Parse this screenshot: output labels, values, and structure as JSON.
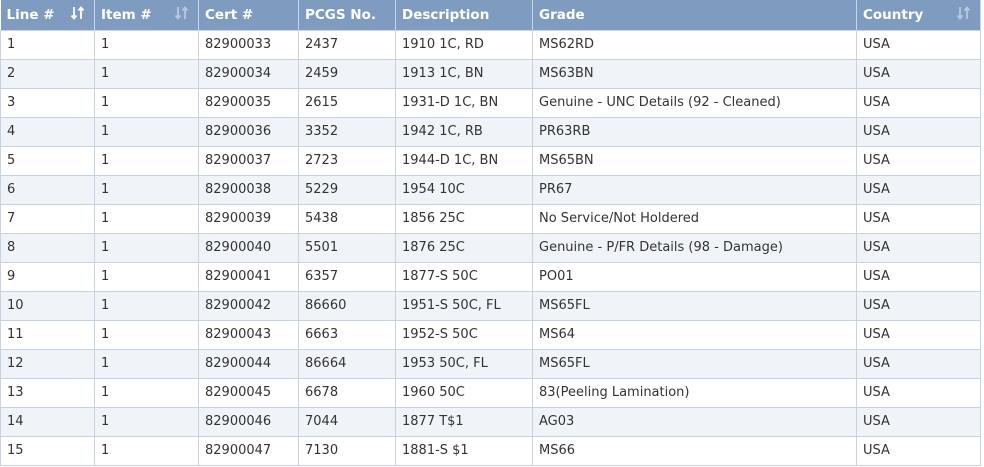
{
  "table": {
    "columns": [
      {
        "label": "Line #",
        "sort_icon": "sort-active-icon"
      },
      {
        "label": "Item #",
        "sort_icon": "sort-icon"
      },
      {
        "label": "Cert #"
      },
      {
        "label": "PCGS No."
      },
      {
        "label": "Description"
      },
      {
        "label": "Grade"
      },
      {
        "label": "Country",
        "sort_icon": "sort-icon"
      }
    ],
    "rows": [
      [
        "1",
        "1",
        "82900033",
        "2437",
        "1910 1C, RD",
        "MS62RD",
        "USA"
      ],
      [
        "2",
        "1",
        "82900034",
        "2459",
        "1913 1C, BN",
        "MS63BN",
        "USA"
      ],
      [
        "3",
        "1",
        "82900035",
        "2615",
        "1931-D 1C, BN",
        "Genuine - UNC Details (92 - Cleaned)",
        "USA"
      ],
      [
        "4",
        "1",
        "82900036",
        "3352",
        "1942 1C, RB",
        "PR63RB",
        "USA"
      ],
      [
        "5",
        "1",
        "82900037",
        "2723",
        "1944-D 1C, BN",
        "MS65BN",
        "USA"
      ],
      [
        "6",
        "1",
        "82900038",
        "5229",
        "1954 10C",
        "PR67",
        "USA"
      ],
      [
        "7",
        "1",
        "82900039",
        "5438",
        "1856 25C",
        "No Service/Not Holdered",
        "USA"
      ],
      [
        "8",
        "1",
        "82900040",
        "5501",
        "1876 25C",
        "Genuine - P/FR Details (98 - Damage)",
        "USA"
      ],
      [
        "9",
        "1",
        "82900041",
        "6357",
        "1877-S 50C",
        "PO01",
        "USA"
      ],
      [
        "10",
        "1",
        "82900042",
        "86660",
        "1951-S 50C, FL",
        "MS65FL",
        "USA"
      ],
      [
        "11",
        "1",
        "82900043",
        "6663",
        "1952-S 50C",
        "MS64",
        "USA"
      ],
      [
        "12",
        "1",
        "82900044",
        "86664",
        "1953 50C, FL",
        "MS65FL",
        "USA"
      ],
      [
        "13",
        "1",
        "82900045",
        "6678",
        "1960 50C",
        "83(Peeling Lamination)",
        "USA"
      ],
      [
        "14",
        "1",
        "82900046",
        "7044",
        "1877 T$1",
        "AG03",
        "USA"
      ],
      [
        "15",
        "1",
        "82900047",
        "7130",
        "1881-S $1",
        "MS66",
        "USA"
      ]
    ]
  },
  "colors": {
    "header_bg": "#7f9cc0",
    "header_text": "#ffffff",
    "row_alt_bg": "#f0f4f9",
    "border": "#c6d3e3"
  }
}
